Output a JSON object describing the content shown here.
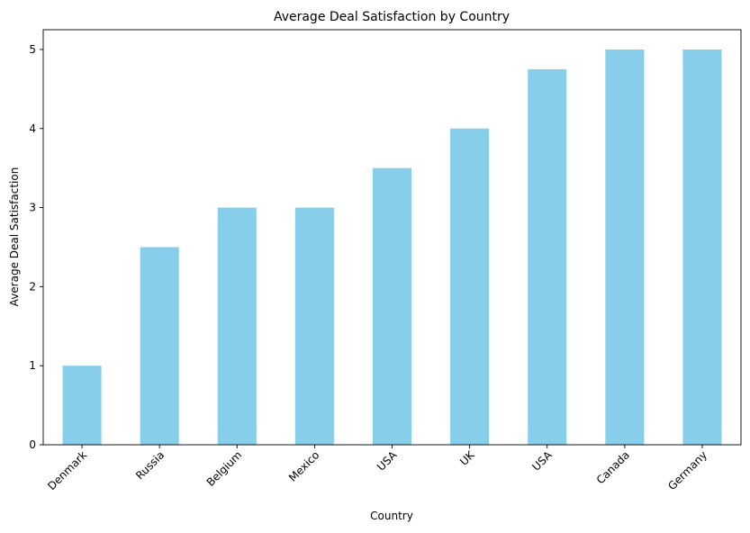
{
  "chart_data": {
    "type": "bar",
    "title": "Average Deal Satisfaction by Country",
    "xlabel": "Country",
    "ylabel": "Average Deal Satisfaction",
    "categories": [
      "Denmark",
      "Russia",
      "Belgium",
      "Mexico",
      "USA",
      "UK",
      "USA",
      "Canada",
      "Germany"
    ],
    "values": [
      1.0,
      2.5,
      3.0,
      3.0,
      3.5,
      4.0,
      4.75,
      5.0,
      5.0
    ],
    "yticks": [
      0,
      1,
      2,
      3,
      4,
      5
    ],
    "ylim": [
      0,
      5.25
    ],
    "bar_color": "#87CEEB",
    "grid": false,
    "legend": "none"
  }
}
